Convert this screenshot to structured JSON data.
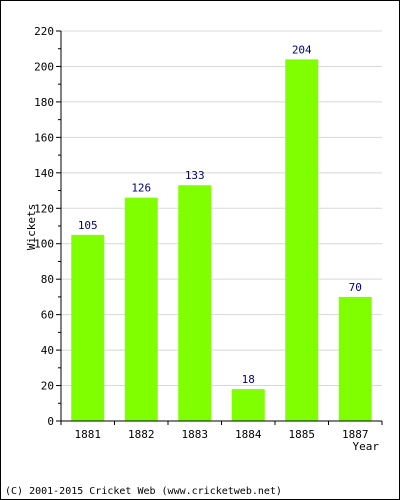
{
  "chart_data": {
    "type": "bar",
    "categories": [
      "1881",
      "1882",
      "1883",
      "1884",
      "1885",
      "1887"
    ],
    "values": [
      105,
      126,
      133,
      18,
      204,
      70
    ],
    "xlabel": "Year",
    "ylabel": "Wickets",
    "ylim": [
      0,
      220
    ],
    "yticks": [
      0,
      20,
      40,
      60,
      80,
      100,
      120,
      140,
      160,
      180,
      200,
      220
    ],
    "minor_tick_step": 10,
    "grid": true,
    "legend": "none",
    "colors": {
      "bar": "#80ff00",
      "data_label": "#000080",
      "grid": "#d8d8d8",
      "axis": "#000000"
    }
  },
  "footer": {
    "copyright": "(C) 2001-2015 Cricket Web (www.cricketweb.net)"
  }
}
